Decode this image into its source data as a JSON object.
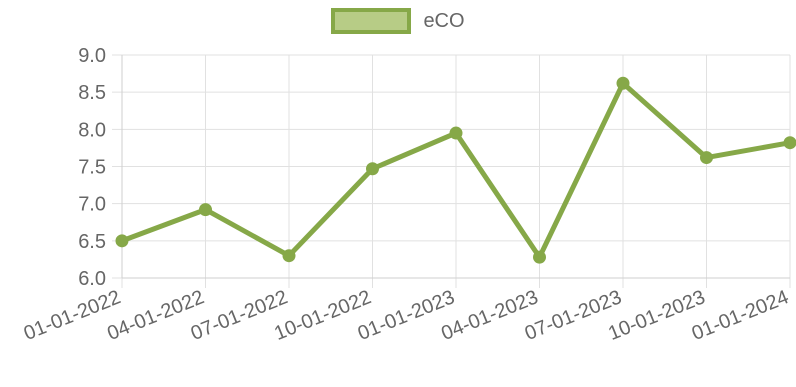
{
  "chart_data": {
    "type": "line",
    "title": "",
    "xlabel": "",
    "ylabel": "",
    "categories": [
      "01-01-2022",
      "04-01-2022",
      "07-01-2022",
      "10-01-2022",
      "01-01-2023",
      "04-01-2023",
      "07-01-2023",
      "10-01-2023",
      "01-01-2024"
    ],
    "series": [
      {
        "name": "eCO",
        "values": [
          6.5,
          6.92,
          6.3,
          7.47,
          7.95,
          6.28,
          8.62,
          7.62,
          7.82
        ]
      }
    ],
    "ylim": [
      6.0,
      9.0
    ],
    "yticks": [
      "6.0",
      "6.5",
      "7.0",
      "7.5",
      "8.0",
      "8.5",
      "9.0"
    ],
    "grid": true,
    "legend_position": "top",
    "colors": {
      "line": "#86a848",
      "fill": "#b7cc86",
      "grid": "#e1e1e1",
      "text": "#666666"
    }
  }
}
